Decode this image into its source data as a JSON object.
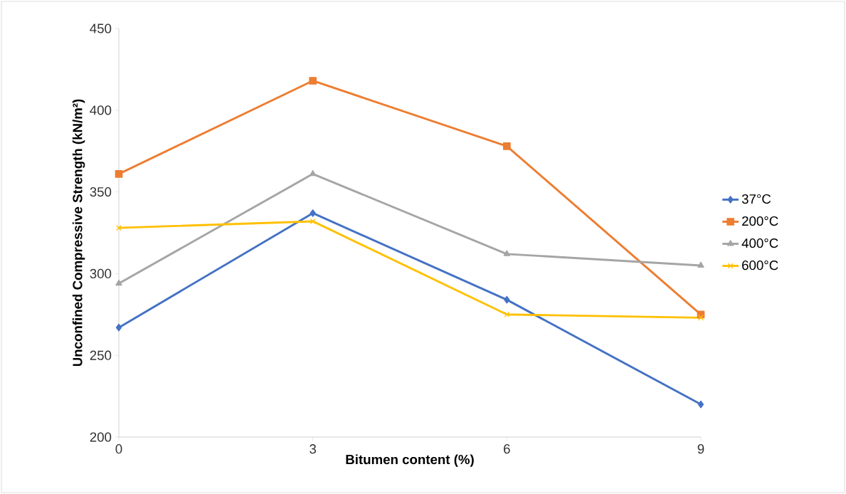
{
  "chart_data": {
    "type": "line",
    "xlabel": "Bitumen content (%)",
    "ylabel": "Unconfined Compressive Strength  (kN/m²)",
    "x": [
      0,
      3,
      6,
      9
    ],
    "xlim": [
      0,
      9
    ],
    "xticks": [
      0,
      3,
      6,
      9
    ],
    "ylim": [
      200,
      450
    ],
    "yticks": [
      200,
      250,
      300,
      350,
      400,
      450
    ],
    "grid": false,
    "legend": "right",
    "series": [
      {
        "name": "37°C",
        "color": "#4472c4",
        "marker": "diamond",
        "values": [
          267,
          337,
          284,
          220
        ]
      },
      {
        "name": "200°C",
        "color": "#ed7d31",
        "marker": "square",
        "values": [
          361,
          418,
          378,
          275
        ]
      },
      {
        "name": "400°C",
        "color": "#a5a5a5",
        "marker": "triangle",
        "values": [
          294,
          361,
          312,
          305
        ]
      },
      {
        "name": "600°C",
        "color": "#ffc000",
        "marker": "cross",
        "values": [
          328,
          332,
          275,
          273
        ]
      }
    ]
  }
}
